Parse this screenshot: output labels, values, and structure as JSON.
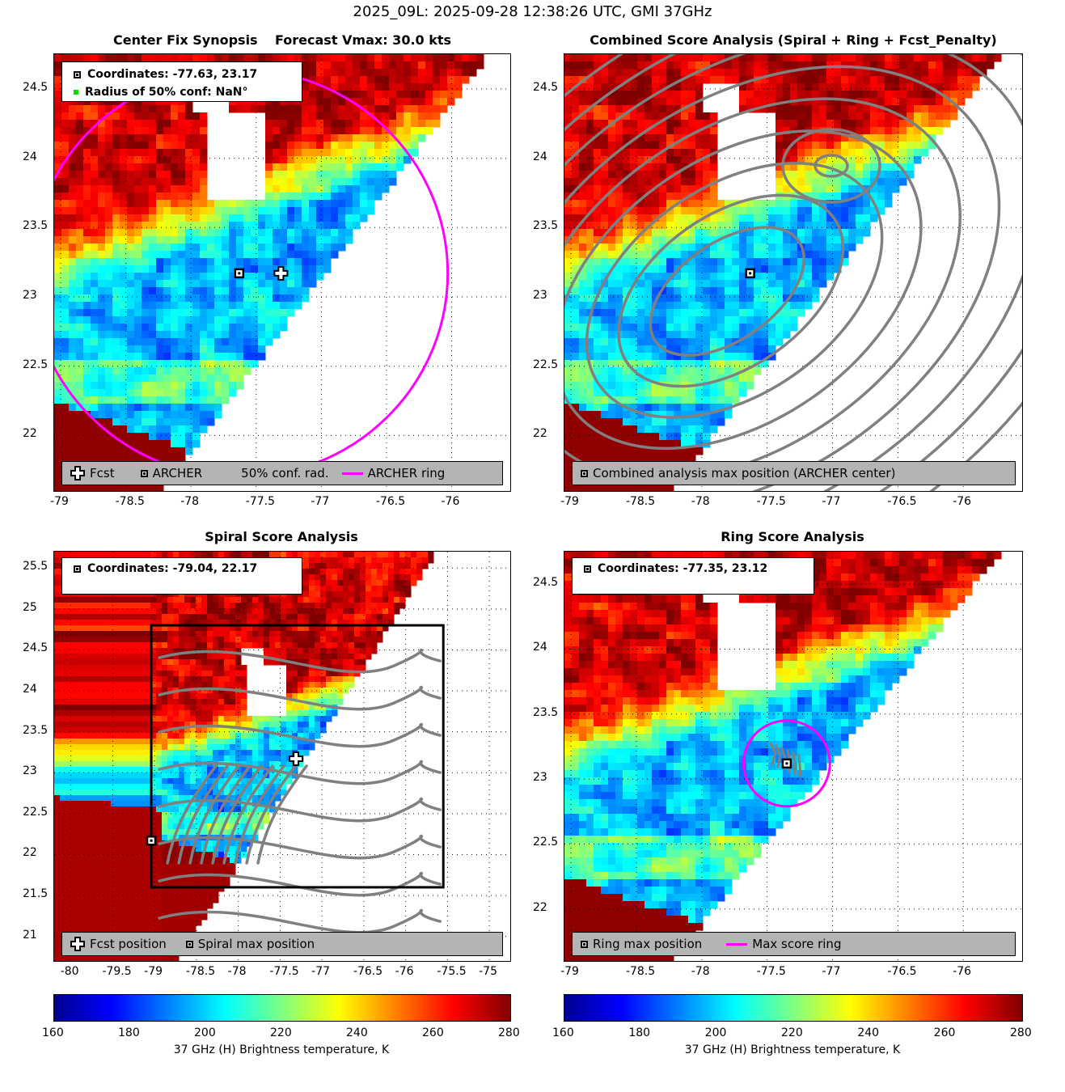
{
  "figure": {
    "title": "2025_09L: 2025-09-28 12:38:26 UTC, GMI 37GHz"
  },
  "colors": {
    "magenta_ring": "#ff00ff",
    "contour": "#808080",
    "legend_bg": "#b4b4b4",
    "colormap": [
      "#00008f",
      "#0000ff",
      "#0080ff",
      "#00ffff",
      "#80ff80",
      "#ffff00",
      "#ff8000",
      "#ff0000",
      "#800000"
    ]
  },
  "panels": {
    "center_fix": {
      "title_left": "Center Fix Synopsis",
      "title_right": "Forecast Vmax: 30.0 kts",
      "info_coords": "Coordinates: -77.63, 23.17",
      "info_radius": "Radius of 50% conf: NaN°",
      "legend": {
        "fcst": "Fcst",
        "archer": "ARCHER",
        "conf": "50% conf. rad.",
        "ring": "ARCHER ring"
      }
    },
    "combined": {
      "title": "Combined Score Analysis (Spiral + Ring + Fcst_Penalty)",
      "legend": {
        "max": "Combined analysis max position (ARCHER center)"
      }
    },
    "spiral": {
      "title": "Spiral Score Analysis",
      "info_coords": "Coordinates: -79.04, 22.17",
      "legend": {
        "fcst": "Fcst position",
        "max": "Spiral max position"
      }
    },
    "ring": {
      "title": "Ring Score Analysis",
      "info_coords": "Coordinates: -77.35, 23.12",
      "legend": {
        "max": "Ring max position",
        "ring": "Max score ring"
      }
    }
  },
  "colorbars": {
    "left": {
      "ticks": [
        "160",
        "180",
        "200",
        "220",
        "240",
        "260",
        "280"
      ],
      "label": "37 GHz (H) Brightness temperature, K"
    },
    "right": {
      "ticks": [
        "160",
        "180",
        "200",
        "220",
        "240",
        "260",
        "280"
      ],
      "label": "37 GHz (H) Brightness temperature, K"
    }
  },
  "chart_data": [
    {
      "type": "heatmap",
      "title": "Center Fix Synopsis    Forecast Vmax: 30.0 kts",
      "variable": "37 GHz (H) Brightness temperature, K",
      "xlim": [
        -79.05,
        -75.55
      ],
      "ylim": [
        21.6,
        24.75
      ],
      "x_ticks": [
        "-79",
        "-78.5",
        "-78",
        "-77.5",
        "-77",
        "-76.5",
        "-76"
      ],
      "y_ticks": [
        "22",
        "22.5",
        "23",
        "23.5",
        "24",
        "24.5"
      ],
      "points": {
        "archer_center": [
          -77.63,
          23.17
        ],
        "fcst": [
          -77.31,
          23.17
        ]
      },
      "archer_ring": {
        "center": [
          -77.63,
          23.17
        ],
        "radius_deg": 1.6
      },
      "confidence_radius": "NaN"
    },
    {
      "type": "heatmap",
      "title": "Combined Score Analysis (Spiral + Ring + Fcst_Penalty)",
      "variable": "37 GHz (H) Brightness temperature, K",
      "xlim": [
        -79.05,
        -75.55
      ],
      "ylim": [
        21.6,
        24.75
      ],
      "x_ticks": [
        "-79",
        "-78.5",
        "-78",
        "-77.5",
        "-77",
        "-76.5",
        "-76"
      ],
      "y_ticks": [
        "22",
        "22.5",
        "23",
        "23.5",
        "24",
        "24.5"
      ],
      "points": {
        "combined_max": [
          -77.63,
          23.17
        ]
      }
    },
    {
      "type": "heatmap",
      "title": "Spiral Score Analysis",
      "variable": "37 GHz (H) Brightness temperature, K",
      "xlim": [
        -80.2,
        -74.75
      ],
      "ylim": [
        20.7,
        25.7
      ],
      "x_ticks": [
        "-80",
        "-79.5",
        "-79",
        "-78.5",
        "-78",
        "-77.5",
        "-77",
        "-76.5",
        "-76",
        "-75.5",
        "-75"
      ],
      "y_ticks": [
        "21",
        "21.5",
        "22",
        "22.5",
        "23",
        "23.5",
        "24",
        "24.5",
        "25",
        "25.5"
      ],
      "points": {
        "spiral_max": [
          -79.04,
          22.17
        ],
        "fcst": [
          -77.31,
          23.17
        ]
      },
      "search_box": {
        "x": [
          -79.04,
          -75.55
        ],
        "y": [
          21.6,
          24.8
        ]
      }
    },
    {
      "type": "heatmap",
      "title": "Ring Score Analysis",
      "variable": "37 GHz (H) Brightness temperature, K",
      "xlim": [
        -79.05,
        -75.55
      ],
      "ylim": [
        21.6,
        24.75
      ],
      "x_ticks": [
        "-79",
        "-78.5",
        "-78",
        "-77.5",
        "-77",
        "-76.5",
        "-76"
      ],
      "y_ticks": [
        "22",
        "22.5",
        "23",
        "23.5",
        "24",
        "24.5"
      ],
      "points": {
        "ring_max": [
          -77.35,
          23.12
        ]
      },
      "max_score_ring": {
        "center": [
          -77.35,
          23.12
        ],
        "radius_deg": 0.33
      }
    }
  ]
}
